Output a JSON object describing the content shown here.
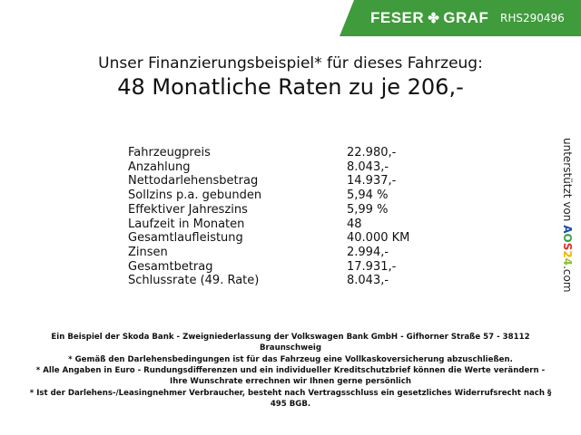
{
  "header": {
    "brand_left": "FESER",
    "brand_right": "GRAF",
    "brand_icon": "clover-icon",
    "code": "RHS290496",
    "color": "#3f9b3b"
  },
  "title": {
    "line1": "Unser Finanzierungsbeispiel* für dieses Fahrzeug:",
    "line2": "48 Monatliche Raten zu je 206,-"
  },
  "table": [
    {
      "label": "Fahrzeugpreis",
      "value": "22.980,-"
    },
    {
      "label": "Anzahlung",
      "value": "8.043,-"
    },
    {
      "label": "Nettodarlehensbetrag",
      "value": "14.937,-"
    },
    {
      "label": "Sollzins p.a. gebunden",
      "value": "5,94 %"
    },
    {
      "label": "Effektiver Jahreszins",
      "value": "5,99 %"
    },
    {
      "label": "Laufzeit in Monaten",
      "value": "48"
    },
    {
      "label": "Gesamtlaufleistung",
      "value": "40.000 KM"
    },
    {
      "label": "Zinsen",
      "value": "2.994,-"
    },
    {
      "label": "Gesamtbetrag",
      "value": "17.931,-"
    },
    {
      "label": "Schlussrate (49. Rate)",
      "value": "8.043,-"
    }
  ],
  "side": {
    "text": "unterstützt von",
    "logo": "AOS24",
    "suffix": ".com"
  },
  "footer": [
    "Ein Beispiel der Skoda Bank - Zweigniederlassung der Volkswagen Bank GmbH - Gifhorner Straße 57 - 38112 Braunschweig",
    "* Gemäß den Darlehensbedingungen ist für das Fahrzeug eine Vollkaskoversicherung abzuschließen.",
    "* Alle Angaben in Euro - Rundungsdifferenzen und ein individueller Kreditschutzbrief können die Werte verändern - Ihre Wunschrate errechnen wir Ihnen gerne persönlich",
    "* Ist der Darlehens-/Leasingnehmer Verbraucher, besteht nach Vertragsschluss ein gesetzliches Widerrufsrecht nach § 495 BGB."
  ]
}
